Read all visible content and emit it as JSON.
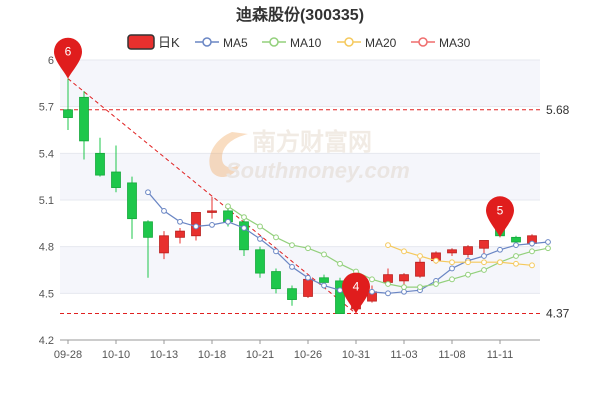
{
  "chart_data": {
    "type": "candlestick",
    "title": "迪森股份(300335)",
    "legend": {
      "kline": "日K",
      "ma5": "MA5",
      "ma10": "MA10",
      "ma20": "MA20",
      "ma30": "MA30"
    },
    "colors": {
      "up": "#e8302e",
      "down": "#1ec74b",
      "ma5": "#6a86c4",
      "ma10": "#93d07c",
      "ma20": "#f5c95c",
      "ma30": "#ef6d6d",
      "ref_line": "#e02020",
      "band": "#f5f6fb"
    },
    "ylim": [
      4.2,
      6.0
    ],
    "yticks": [
      "4.2",
      "4.5",
      "4.8",
      "5.1",
      "5.4",
      "5.7",
      "6"
    ],
    "xtick_labels": [
      "09-28",
      "10-10",
      "10-13",
      "10-18",
      "10-21",
      "10-26",
      "10-31",
      "11-03",
      "11-08",
      "11-11"
    ],
    "xtick_index": [
      0,
      3,
      6,
      9,
      12,
      15,
      18,
      21,
      24,
      27
    ],
    "candles": [
      {
        "o": 5.68,
        "h": 5.88,
        "l": 5.55,
        "c": 5.63
      },
      {
        "o": 5.76,
        "h": 5.8,
        "l": 5.36,
        "c": 5.48
      },
      {
        "o": 5.4,
        "h": 5.5,
        "l": 5.25,
        "c": 5.26
      },
      {
        "o": 5.28,
        "h": 5.45,
        "l": 5.15,
        "c": 5.18
      },
      {
        "o": 5.21,
        "h": 5.25,
        "l": 4.85,
        "c": 4.98
      },
      {
        "o": 4.96,
        "h": 4.97,
        "l": 4.6,
        "c": 4.86
      },
      {
        "o": 4.76,
        "h": 4.9,
        "l": 4.72,
        "c": 4.87
      },
      {
        "o": 4.86,
        "h": 4.92,
        "l": 4.82,
        "c": 4.9
      },
      {
        "o": 4.87,
        "h": 5.02,
        "l": 4.84,
        "c": 5.02
      },
      {
        "o": 5.02,
        "h": 5.12,
        "l": 4.98,
        "c": 5.03
      },
      {
        "o": 5.03,
        "h": 5.05,
        "l": 4.93,
        "c": 4.96
      },
      {
        "o": 4.96,
        "h": 4.98,
        "l": 4.74,
        "c": 4.78
      },
      {
        "o": 4.78,
        "h": 4.8,
        "l": 4.6,
        "c": 4.63
      },
      {
        "o": 4.64,
        "h": 4.66,
        "l": 4.5,
        "c": 4.53
      },
      {
        "o": 4.53,
        "h": 4.55,
        "l": 4.42,
        "c": 4.46
      },
      {
        "o": 4.48,
        "h": 4.6,
        "l": 4.47,
        "c": 4.59
      },
      {
        "o": 4.6,
        "h": 4.62,
        "l": 4.53,
        "c": 4.57
      },
      {
        "o": 4.58,
        "h": 4.6,
        "l": 4.37,
        "c": 4.37
      },
      {
        "o": 4.4,
        "h": 4.52,
        "l": 4.37,
        "c": 4.5
      },
      {
        "o": 4.45,
        "h": 4.55,
        "l": 4.44,
        "c": 4.51
      },
      {
        "o": 4.57,
        "h": 4.66,
        "l": 4.56,
        "c": 4.62
      },
      {
        "o": 4.58,
        "h": 4.63,
        "l": 4.55,
        "c": 4.62
      },
      {
        "o": 4.61,
        "h": 4.72,
        "l": 4.6,
        "c": 4.7
      },
      {
        "o": 4.71,
        "h": 4.77,
        "l": 4.69,
        "c": 4.76
      },
      {
        "o": 4.76,
        "h": 4.79,
        "l": 4.74,
        "c": 4.78
      },
      {
        "o": 4.75,
        "h": 4.81,
        "l": 4.73,
        "c": 4.8
      },
      {
        "o": 4.79,
        "h": 4.84,
        "l": 4.75,
        "c": 4.84
      },
      {
        "o": 4.95,
        "h": 4.97,
        "l": 4.86,
        "c": 4.87
      },
      {
        "o": 4.86,
        "h": 4.87,
        "l": 4.82,
        "c": 4.83
      },
      {
        "o": 4.82,
        "h": 4.88,
        "l": 4.8,
        "c": 4.87
      }
    ],
    "series": [
      {
        "key": "ma5",
        "name": "MA5",
        "start": 5,
        "values": [
          5.15,
          5.03,
          4.96,
          4.93,
          4.94,
          4.96,
          4.92,
          4.85,
          4.77,
          4.67,
          4.6,
          4.55,
          4.52,
          4.5,
          4.51,
          4.5,
          4.51,
          4.52,
          4.58,
          4.66,
          4.71,
          4.74,
          4.78,
          4.81,
          4.82,
          4.83
        ]
      },
      {
        "key": "ma10",
        "name": "MA10",
        "start": 10,
        "values": [
          5.06,
          4.99,
          4.93,
          4.86,
          4.81,
          4.79,
          4.75,
          4.69,
          4.64,
          4.59,
          4.56,
          4.54,
          4.54,
          4.56,
          4.59,
          4.62,
          4.65,
          4.7,
          4.74,
          4.77,
          4.79
        ]
      },
      {
        "key": "ma20",
        "name": "MA20",
        "start": 20,
        "values": [
          4.81,
          4.77,
          4.74,
          4.71,
          4.7,
          4.7,
          4.7,
          4.7,
          4.69,
          4.68
        ]
      },
      {
        "key": "ma30",
        "name": "MA30",
        "start": 30,
        "values": []
      }
    ],
    "ref_lines": [
      {
        "value": 5.68,
        "label": "5.68"
      },
      {
        "value": 4.37,
        "label": "4.37"
      }
    ],
    "trend_line": {
      "from_index": 0,
      "from_value": 5.88,
      "to_index": 18,
      "to_value": 4.37
    },
    "markers": [
      {
        "index": 0,
        "value": 5.88,
        "label": "6"
      },
      {
        "index": 18,
        "value": 4.37,
        "label": "4"
      },
      {
        "index": 27,
        "value": 4.86,
        "label": "5"
      }
    ],
    "watermark": "南方财富网 Southmoney.com"
  }
}
